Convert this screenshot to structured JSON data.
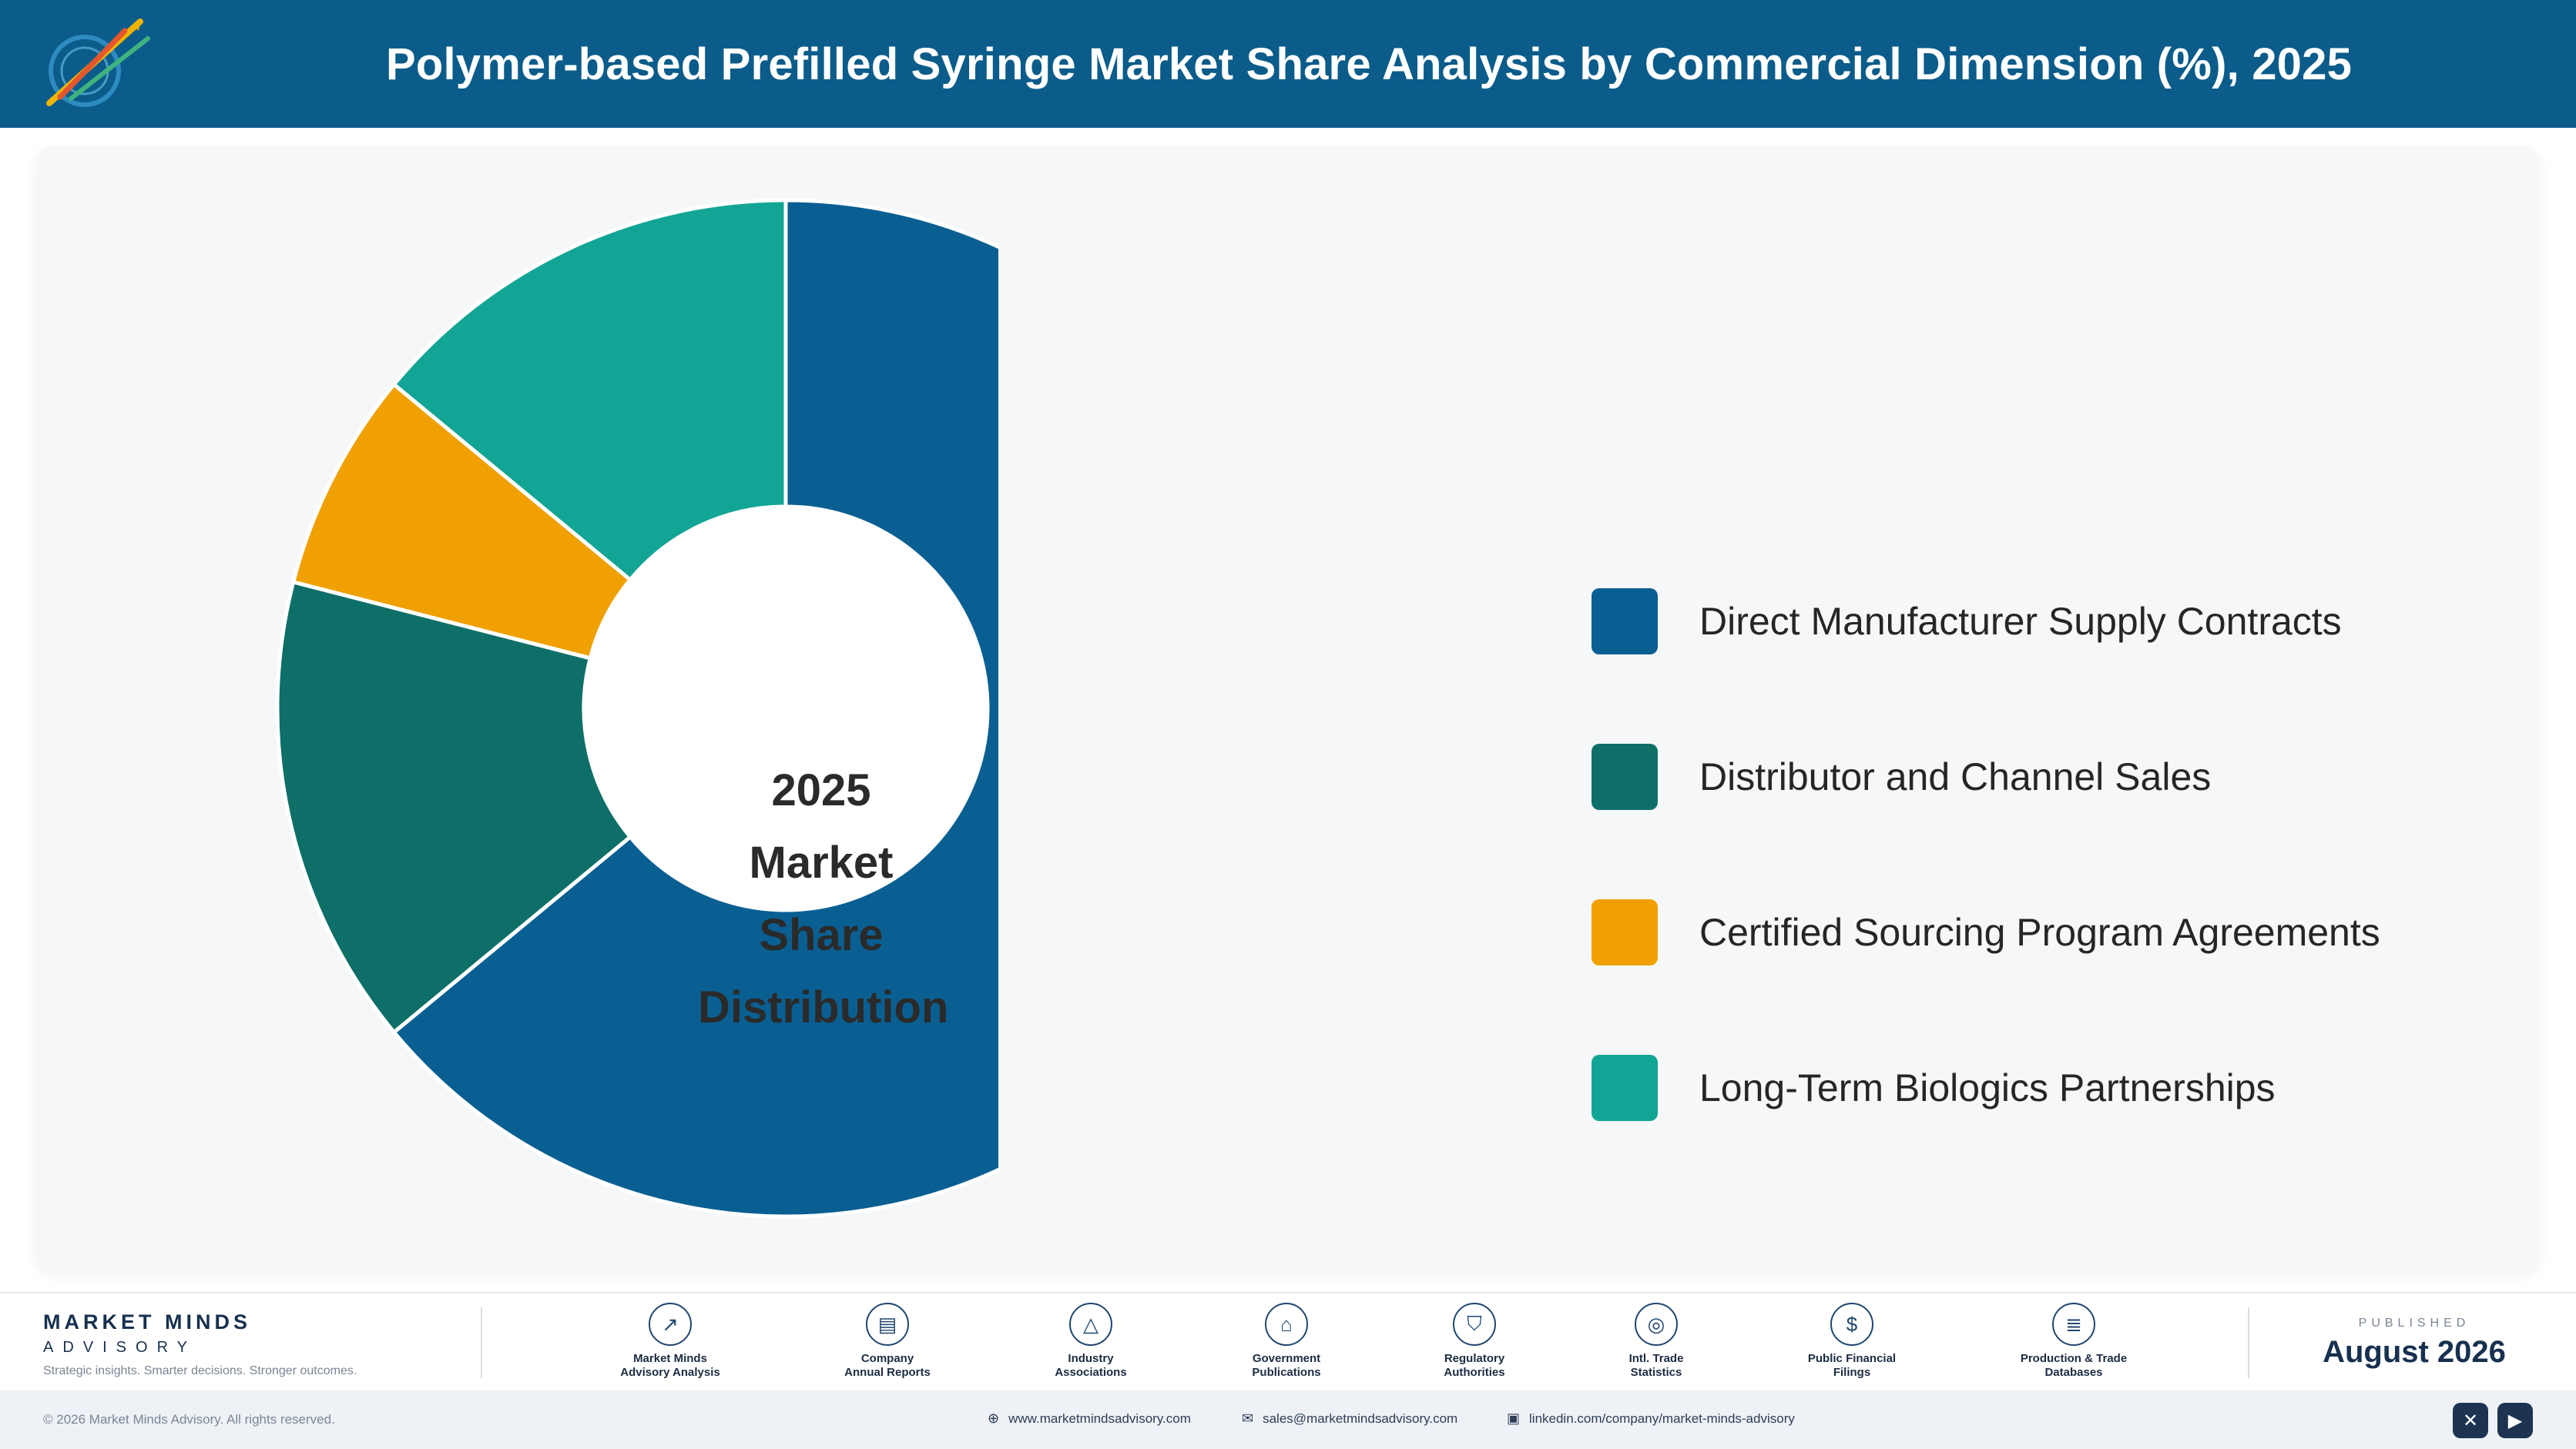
{
  "header": {
    "title": "Polymer-based Prefilled Syringe Market Share Analysis by Commercial Dimension (%), 2025"
  },
  "chart_data": {
    "type": "pie",
    "title": "Polymer-based Prefilled Syringe Market Share Analysis by Commercial Dimension (%), 2025",
    "center_label": [
      "2025",
      "Market Share",
      "Distribution"
    ],
    "categories": [
      "Direct Manufacturer Supply Contracts",
      "Distributor and Channel Sales",
      "Certified Sourcing Program Agreements",
      "Long-Term Biologics Partnerships"
    ],
    "values": [
      64,
      15,
      7,
      14
    ],
    "colors": [
      "#0a5f92",
      "#0e6f68",
      "#f0a000",
      "#12a595"
    ],
    "legend_position": "right"
  },
  "footer": {
    "brand_name": "MARKET MINDS",
    "brand_sub": "ADVISORY",
    "tagline": "Strategic insights. Smarter decisions. Stronger outcomes.",
    "sources": [
      {
        "icon": "chart-line-icon",
        "glyph": "↗",
        "line1": "Market Minds",
        "line2": "Advisory Analysis"
      },
      {
        "icon": "document-icon",
        "glyph": "▤",
        "line1": "Company",
        "line2": "Annual Reports"
      },
      {
        "icon": "network-icon",
        "glyph": "△",
        "line1": "Industry",
        "line2": "Associations"
      },
      {
        "icon": "government-building-icon",
        "glyph": "⌂",
        "line1": "Government",
        "line2": "Publications"
      },
      {
        "icon": "shield-icon",
        "glyph": "⛉",
        "line1": "Regulatory",
        "line2": "Authorities"
      },
      {
        "icon": "globe-icon",
        "glyph": "◎",
        "line1": "Intl. Trade",
        "line2": "Statistics"
      },
      {
        "icon": "dollar-icon",
        "glyph": "$",
        "line1": "Public Financial",
        "line2": "Filings"
      },
      {
        "icon": "database-icon",
        "glyph": "≣",
        "line1": "Production & Trade",
        "line2": "Databases"
      }
    ],
    "published_label": "PUBLISHED",
    "published_date": "August 2026"
  },
  "bottom_bar": {
    "copyright": "© 2026 Market Minds Advisory. All rights reserved.",
    "website": "www.marketmindsadvisory.com",
    "email": "sales@marketmindsadvisory.com",
    "linkedin": "linkedin.com/company/market-minds-advisory"
  }
}
